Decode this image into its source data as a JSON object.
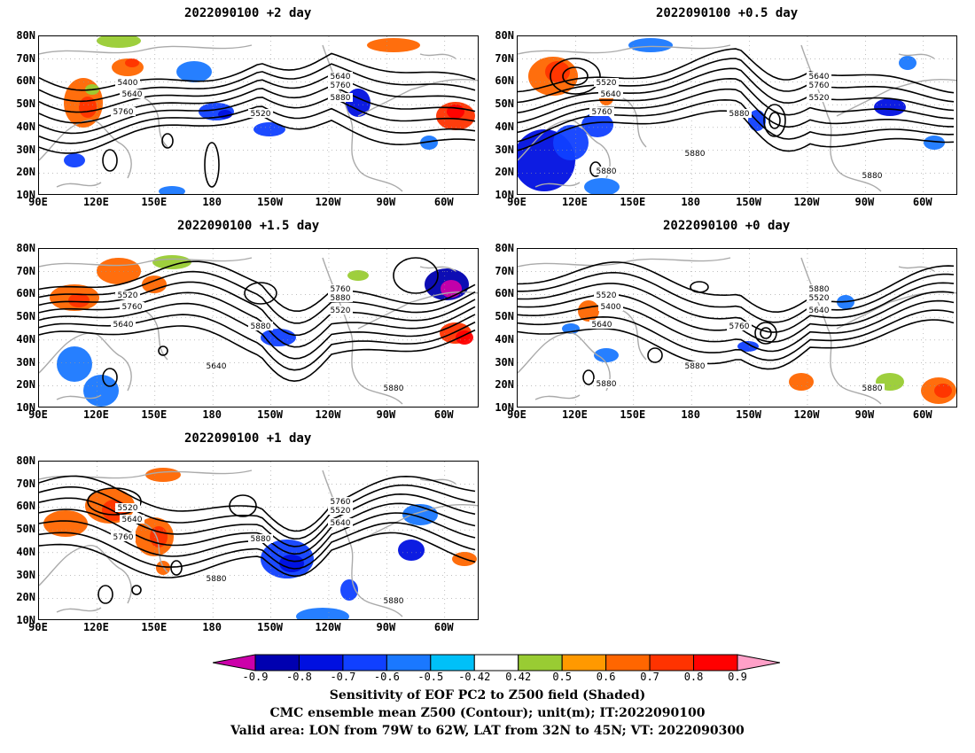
{
  "panels": [
    {
      "title": "2022090100 +2 day",
      "id": "plus2"
    },
    {
      "title": "2022090100 +0.5 day",
      "id": "plus05"
    },
    {
      "title": "2022090100 +1.5 day",
      "id": "plus15"
    },
    {
      "title": "2022090100 +0 day",
      "id": "plus0"
    },
    {
      "title": "2022090100 +1 day",
      "id": "plus1"
    }
  ],
  "axes": {
    "lat_ticks": [
      "80N",
      "70N",
      "60N",
      "50N",
      "40N",
      "30N",
      "20N",
      "10N"
    ],
    "lon_ticks": [
      "90E",
      "120E",
      "150E",
      "180",
      "150W",
      "120W",
      "90W",
      "60W"
    ]
  },
  "contour_labels": {
    "plus2": [
      "5400",
      "5640",
      "5760",
      "5520",
      "5640",
      "5760",
      "5880"
    ],
    "plus05": [
      "5520",
      "5640",
      "5760",
      "5880",
      "5640",
      "5760",
      "5520",
      "5880",
      "5880",
      "5880"
    ],
    "plus15": [
      "5520",
      "5760",
      "5640",
      "5880",
      "5760",
      "5880",
      "5520",
      "5640",
      "5880"
    ],
    "plus0": [
      "5520",
      "5400",
      "5640",
      "5760",
      "5880",
      "5520",
      "5640",
      "5880",
      "5880",
      "5880"
    ],
    "plus1": [
      "5520",
      "5640",
      "5760",
      "5880",
      "5760",
      "5520",
      "5640",
      "5880",
      "5880"
    ]
  },
  "colorbar": {
    "labels": [
      "-0.9",
      "-0.8",
      "-0.7",
      "-0.6",
      "-0.5",
      "-0.42",
      "0.42",
      "0.5",
      "0.6",
      "0.7",
      "0.8",
      "0.9"
    ],
    "colors": [
      "#cc00aa",
      "#0000b0",
      "#0010e0",
      "#1040ff",
      "#1a78ff",
      "#00c0f8",
      "#ffffff",
      "#99cc33",
      "#ff9900",
      "#ff6600",
      "#ff3300",
      "#ff0000",
      "#ffa0c8"
    ]
  },
  "captions": [
    "Sensitivity of EOF PC2 to Z500 field (Shaded)",
    "CMC ensemble mean Z500 (Contour); unit(m); IT:2022090100",
    "Valid area: LON from 79W to 62W, LAT from 32N to 45N; VT: 2022090300"
  ]
}
